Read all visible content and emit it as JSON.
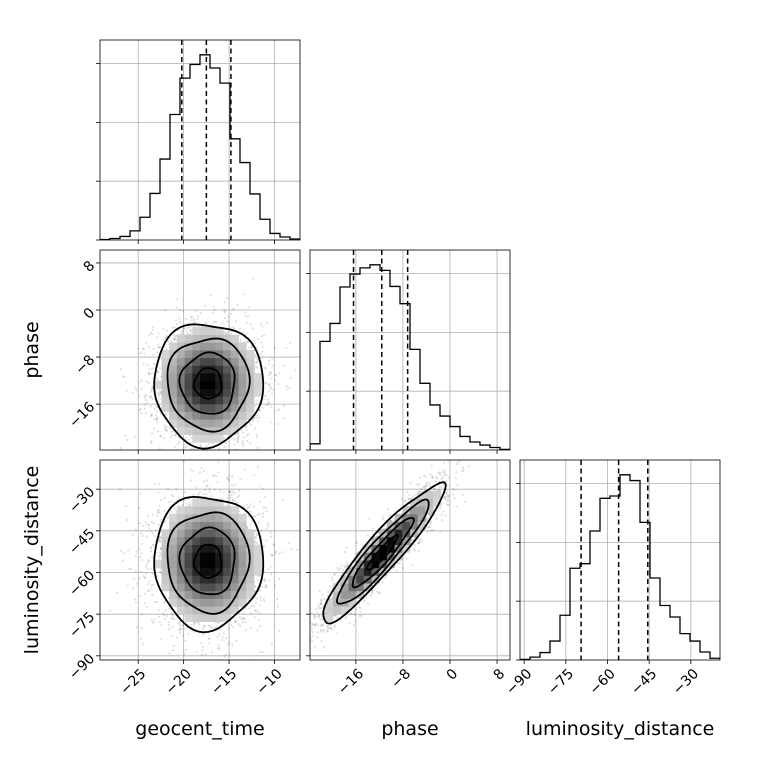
{
  "chart_data": {
    "type": "corner",
    "parameters": [
      "geocent_time",
      "phase",
      "luminosity_distance"
    ],
    "axis_labels": {
      "x": [
        "geocent_time",
        "phase",
        "luminosity_distance"
      ],
      "y": [
        "phase",
        "luminosity_distance"
      ]
    },
    "grid": true,
    "ranges": {
      "geocent_time": [
        -29.2,
        -7.2
      ],
      "phase": [
        -23.8,
        10.2
      ],
      "luminosity_distance": [
        -91.5,
        -19.5
      ]
    },
    "ticks": {
      "geocent_time": [
        -25,
        -20,
        -15,
        -10
      ],
      "phase": [
        -16,
        -8,
        0,
        8
      ],
      "luminosity_distance": [
        -90,
        -75,
        -60,
        -45,
        -30
      ]
    },
    "tick_labels": {
      "geocent_time": [
        "−25",
        "−20",
        "−15",
        "−10"
      ],
      "phase_x": [
        "−16",
        "−8",
        "0",
        "8"
      ],
      "phase_y": [
        "−16",
        "−8",
        "0",
        "8"
      ],
      "luminosity_distance_x": [
        "−90",
        "−75",
        "−60",
        "−45",
        "−30"
      ],
      "luminosity_distance_y": [
        "−90",
        "−75",
        "−60",
        "−45",
        "−30"
      ]
    },
    "quantiles": {
      "geocent_time": [
        -20.2,
        -17.5,
        -14.8
      ],
      "phase": [
        -16.4,
        -11.6,
        -7.2
      ],
      "luminosity_distance": [
        -69.5,
        -56.0,
        -45.5
      ]
    },
    "histograms": {
      "geocent_time": {
        "edges": [
          -29.2,
          -28.1,
          -27.0,
          -25.9,
          -24.8,
          -23.7,
          -22.6,
          -21.5,
          -20.4,
          -19.3,
          -18.2,
          -17.1,
          -16.0,
          -14.9,
          -13.8,
          -12.7,
          -11.6,
          -10.5,
          -9.4,
          -8.3,
          -7.2
        ],
        "counts": [
          1,
          3,
          7,
          18,
          45,
          92,
          160,
          248,
          320,
          347,
          366,
          340,
          310,
          200,
          153,
          91,
          41,
          13,
          6,
          2
        ]
      },
      "phase": {
        "edges": [
          -23.8,
          -22.1,
          -20.4,
          -18.7,
          -17.0,
          -15.3,
          -13.6,
          -11.9,
          -10.2,
          -8.5,
          -6.8,
          -5.1,
          -3.4,
          -1.7,
          0.0,
          1.7,
          3.4,
          5.1,
          6.8,
          8.5,
          10.2
        ],
        "counts": [
          10,
          176,
          205,
          264,
          285,
          295,
          300,
          291,
          265,
          237,
          163,
          108,
          73,
          55,
          38,
          22,
          13,
          8,
          4,
          1
        ]
      },
      "luminosity_distance": {
        "edges": [
          -91.5,
          -87.9,
          -84.3,
          -80.7,
          -77.1,
          -73.5,
          -69.9,
          -66.3,
          -62.7,
          -59.1,
          -55.5,
          -51.9,
          -48.3,
          -44.7,
          -41.1,
          -37.5,
          -33.9,
          -30.3,
          -26.7,
          -23.1,
          -19.5
        ],
        "counts": [
          1,
          5,
          13,
          33,
          78,
          160,
          168,
          225,
          282,
          286,
          323,
          313,
          240,
          143,
          95,
          75,
          46,
          33,
          14,
          3
        ]
      }
    },
    "joint_2d": [
      {
        "x": "geocent_time",
        "y": "phase",
        "mean": [
          -17.3,
          -12.5
        ],
        "sd": [
          3.0,
          5.2
        ],
        "rho": 0.0
      },
      {
        "x": "geocent_time",
        "y": "luminosity_distance",
        "mean": [
          -17.3,
          -56.0
        ],
        "sd": [
          3.0,
          12.0
        ],
        "rho": 0.0
      },
      {
        "x": "phase",
        "y": "luminosity_distance",
        "mean": [
          -11.5,
          -53.0
        ],
        "sd": [
          5.2,
          12.5
        ],
        "rho": 0.93
      }
    ],
    "contour_levels_sigma": [
      0.5,
      1.0,
      1.5,
      2.0
    ]
  }
}
